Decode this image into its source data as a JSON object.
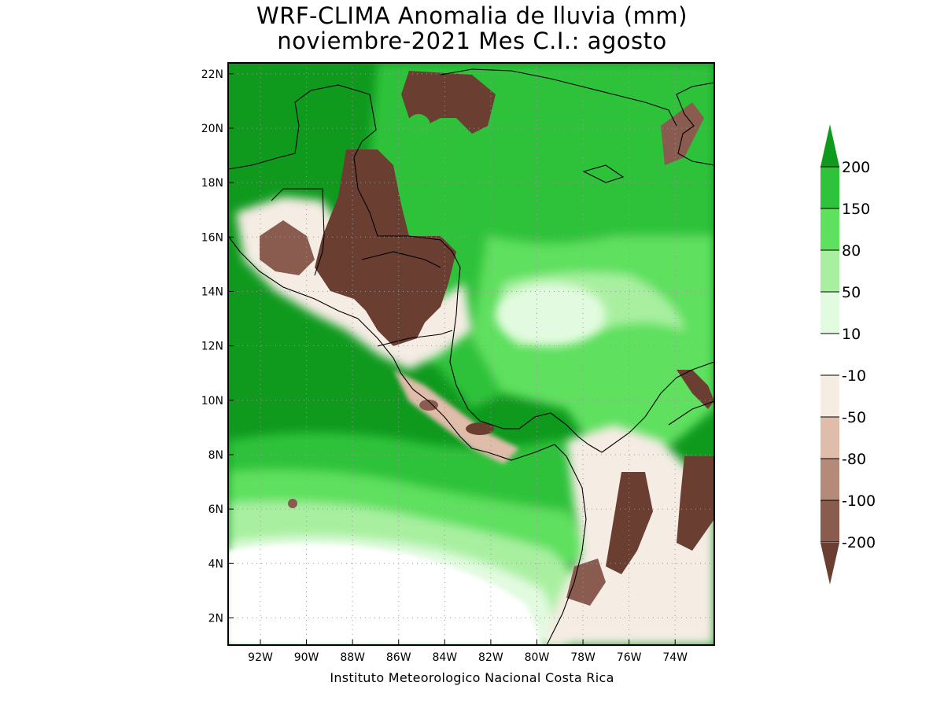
{
  "title_line1": "WRF-CLIMA Anomalia de lluvia (mm)",
  "title_line2": "noviembre-2021 Mes C.I.: agosto",
  "credit": "Instituto Meteorologico Nacional Costa Rica",
  "map": {
    "lon_range": [
      -93.4,
      -72.3
    ],
    "lat_range": [
      1.0,
      22.4
    ],
    "lon_ticks": [
      "92W",
      "90W",
      "88W",
      "86W",
      "84W",
      "82W",
      "80W",
      "78W",
      "76W",
      "74W"
    ],
    "lat_ticks": [
      "22N",
      "20N",
      "18N",
      "16N",
      "14N",
      "12N",
      "10N",
      "8N",
      "6N",
      "4N",
      "2N"
    ],
    "grid": "dotted"
  },
  "legend": {
    "levels": [
      "200",
      "150",
      "80",
      "50",
      "10",
      "-10",
      "-50",
      "-80",
      "-100",
      "-200"
    ],
    "colors": {
      "above_200": "#0f9a1e",
      "150_200": "#2fc23a",
      "80_150": "#5fe05f",
      "50_80": "#a8f0a0",
      "10_50": "#e2fbe0",
      "-10_10": "#ffffff",
      "-50_-10": "#f5ece4",
      "-80_-50": "#e0bcaa",
      "-100_-80": "#b58a78",
      "-200_-100": "#8a5c50",
      "below_-200": "#6b3e32"
    }
  },
  "colors": {
    "coastline": "#000000",
    "grid": "#9a9a9a"
  }
}
